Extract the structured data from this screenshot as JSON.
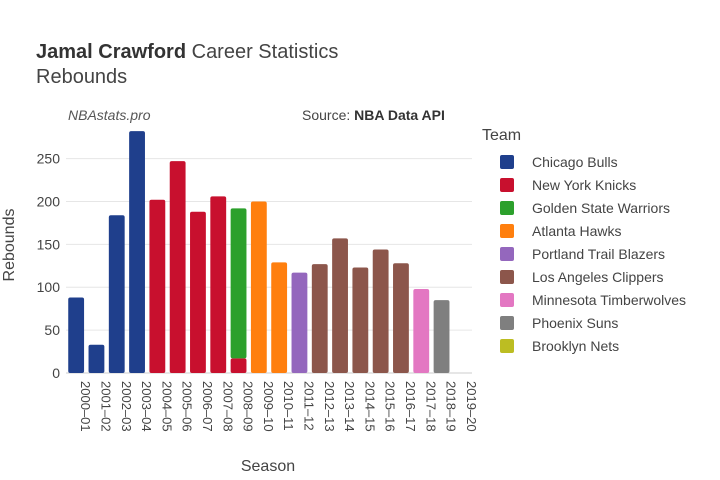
{
  "header": {
    "title_bold": "Jamal Crawford",
    "title_rest": " Career Statistics",
    "subtitle": "Rebounds"
  },
  "watermark": "NBAstats.pro",
  "source": {
    "prefix": "Source: ",
    "name": "NBA Data API"
  },
  "legend": {
    "title": "Team",
    "items": [
      {
        "label": "Chicago Bulls",
        "color": "#1f3f8c"
      },
      {
        "label": "New York Knicks",
        "color": "#c8102e"
      },
      {
        "label": "Golden State Warriors",
        "color": "#2ca02c"
      },
      {
        "label": "Atlanta Hawks",
        "color": "#ff7f0e"
      },
      {
        "label": "Portland Trail Blazers",
        "color": "#9467bd"
      },
      {
        "label": "Los Angeles Clippers",
        "color": "#8c564b"
      },
      {
        "label": "Minnesota Timberwolves",
        "color": "#e377c2"
      },
      {
        "label": "Phoenix Suns",
        "color": "#7f7f7f"
      },
      {
        "label": "Brooklyn Nets",
        "color": "#bcbd22"
      }
    ]
  },
  "chart_data": {
    "type": "bar",
    "stacked": true,
    "xlabel": "Season",
    "ylabel": "Rebounds",
    "ylim": [
      0,
      290
    ],
    "yticks": [
      0,
      50,
      100,
      150,
      200,
      250
    ],
    "grid": true,
    "legend_position": "right",
    "categories": [
      "2000–01",
      "2001–02",
      "2002–03",
      "2003–04",
      "2004–05",
      "2005–06",
      "2006–07",
      "2007–08",
      "2008–09",
      "2009–10",
      "2010–11",
      "2011–12",
      "2012–13",
      "2013–14",
      "2014–15",
      "2015–16",
      "2016–17",
      "2017–18",
      "2018–19",
      "2019–20"
    ],
    "bars": [
      {
        "season": "2000–01",
        "segments": [
          {
            "team": "Chicago Bulls",
            "value": 88
          }
        ]
      },
      {
        "season": "2001–02",
        "segments": [
          {
            "team": "Chicago Bulls",
            "value": 33
          }
        ]
      },
      {
        "season": "2002–03",
        "segments": [
          {
            "team": "Chicago Bulls",
            "value": 184
          }
        ]
      },
      {
        "season": "2003–04",
        "segments": [
          {
            "team": "Chicago Bulls",
            "value": 282
          }
        ]
      },
      {
        "season": "2004–05",
        "segments": [
          {
            "team": "New York Knicks",
            "value": 202
          }
        ]
      },
      {
        "season": "2005–06",
        "segments": [
          {
            "team": "New York Knicks",
            "value": 247
          }
        ]
      },
      {
        "season": "2006–07",
        "segments": [
          {
            "team": "New York Knicks",
            "value": 188
          }
        ]
      },
      {
        "season": "2007–08",
        "segments": [
          {
            "team": "New York Knicks",
            "value": 206
          }
        ]
      },
      {
        "season": "2008–09",
        "segments": [
          {
            "team": "New York Knicks",
            "value": 17
          },
          {
            "team": "Golden State Warriors",
            "value": 175
          }
        ]
      },
      {
        "season": "2009–10",
        "segments": [
          {
            "team": "Atlanta Hawks",
            "value": 200
          }
        ]
      },
      {
        "season": "2010–11",
        "segments": [
          {
            "team": "Atlanta Hawks",
            "value": 129
          }
        ]
      },
      {
        "season": "2011–12",
        "segments": [
          {
            "team": "Portland Trail Blazers",
            "value": 117
          }
        ]
      },
      {
        "season": "2012–13",
        "segments": [
          {
            "team": "Los Angeles Clippers",
            "value": 127
          }
        ]
      },
      {
        "season": "2013–14",
        "segments": [
          {
            "team": "Los Angeles Clippers",
            "value": 157
          }
        ]
      },
      {
        "season": "2014–15",
        "segments": [
          {
            "team": "Los Angeles Clippers",
            "value": 123
          }
        ]
      },
      {
        "season": "2015–16",
        "segments": [
          {
            "team": "Los Angeles Clippers",
            "value": 144
          }
        ]
      },
      {
        "season": "2016–17",
        "segments": [
          {
            "team": "Los Angeles Clippers",
            "value": 128
          }
        ]
      },
      {
        "season": "2017–18",
        "segments": [
          {
            "team": "Minnesota Timberwolves",
            "value": 98
          }
        ]
      },
      {
        "season": "2018–19",
        "segments": [
          {
            "team": "Phoenix Suns",
            "value": 85
          }
        ]
      },
      {
        "season": "2019–20",
        "segments": [
          {
            "team": "Brooklyn Nets",
            "value": 0
          }
        ]
      }
    ]
  }
}
